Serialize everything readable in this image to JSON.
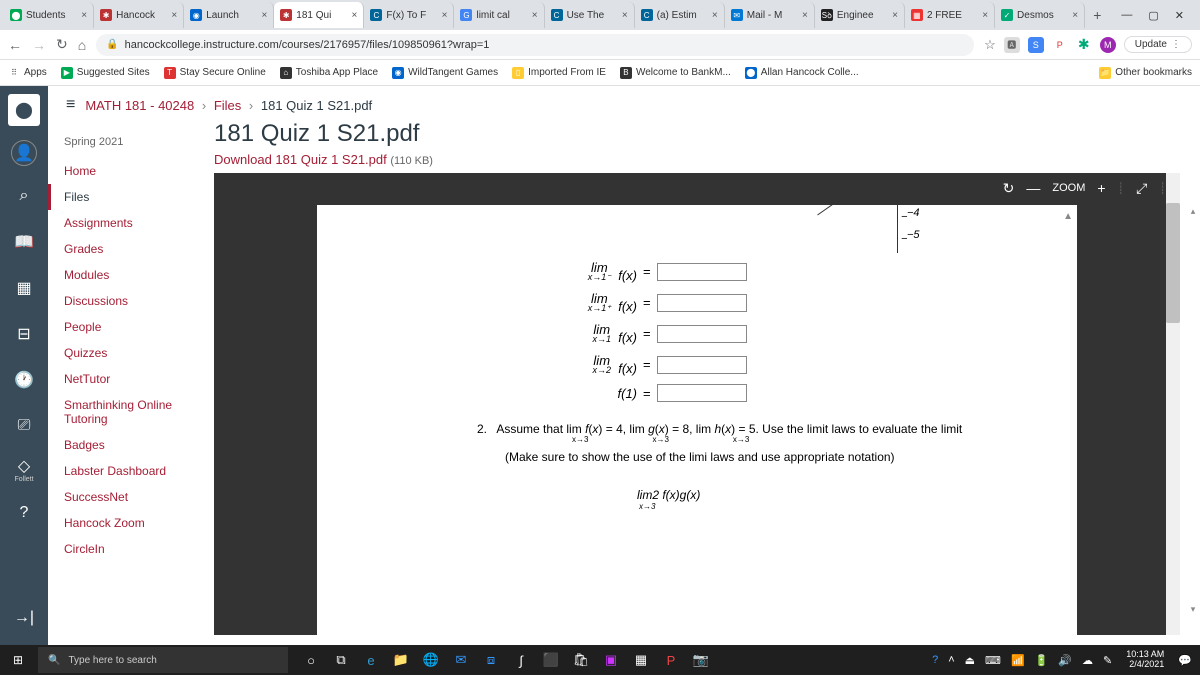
{
  "tabs": [
    {
      "label": "Students",
      "fav_bg": "#0a5",
      "fav_txt": "⬤"
    },
    {
      "label": "Hancock",
      "fav_bg": "#b33",
      "fav_txt": "✱"
    },
    {
      "label": "Launch",
      "fav_bg": "#06c",
      "fav_txt": "◉"
    },
    {
      "label": "181 Qui",
      "fav_bg": "#b33",
      "fav_txt": "✱",
      "active": true
    },
    {
      "label": "F(x) To F",
      "fav_bg": "#069",
      "fav_txt": "C"
    },
    {
      "label": "limit cal",
      "fav_bg": "#4285f4",
      "fav_txt": "G"
    },
    {
      "label": "Use The",
      "fav_bg": "#069",
      "fav_txt": "C"
    },
    {
      "label": "(a) Estim",
      "fav_bg": "#069",
      "fav_txt": "C"
    },
    {
      "label": "Mail - M",
      "fav_bg": "#0078d4",
      "fav_txt": "✉"
    },
    {
      "label": "Enginee",
      "fav_bg": "#222",
      "fav_txt": "Sꝺ"
    },
    {
      "label": "2 FREE",
      "fav_bg": "#e33",
      "fav_txt": "▦"
    },
    {
      "label": "Desmos",
      "fav_bg": "#0a7",
      "fav_txt": "✓"
    }
  ],
  "url": "hancockcollege.instructure.com/courses/2176957/files/109850961?wrap=1",
  "update_label": "Update",
  "bookmarks": [
    {
      "label": "Apps",
      "icon": "⠿",
      "bg": ""
    },
    {
      "label": "Suggested Sites",
      "icon": "▶",
      "bg": "#0a5"
    },
    {
      "label": "Stay Secure Online",
      "icon": "T",
      "bg": "#d33"
    },
    {
      "label": "Toshiba App Place",
      "icon": "⌂",
      "bg": "#333"
    },
    {
      "label": "WildTangent Games",
      "icon": "◉",
      "bg": "#06c"
    },
    {
      "label": "Imported From IE",
      "icon": "▯",
      "bg": "#fc3"
    },
    {
      "label": "Welcome to BankM...",
      "icon": "B",
      "bg": "#333"
    },
    {
      "label": "Allan Hancock Colle...",
      "icon": "⬤",
      "bg": "#06c"
    }
  ],
  "other_bookmarks": "Other bookmarks",
  "breadcrumb": {
    "course": "MATH 181 - 40248",
    "mid": "Files",
    "current": "181 Quiz 1 S21.pdf"
  },
  "term": "Spring 2021",
  "course_nav": [
    "Home",
    "Files",
    "Assignments",
    "Grades",
    "Modules",
    "Discussions",
    "People",
    "Quizzes",
    "NetTutor",
    "Smarthinking Online Tutoring",
    "Badges",
    "Labster Dashboard",
    "SuccessNet",
    "Hancock Zoom",
    "CircleIn"
  ],
  "course_nav_active": 1,
  "file_title": "181 Quiz 1 S21.pdf",
  "download_text": "Download 181 Quiz 1 S21.pdf",
  "file_size": "(110 KB)",
  "pdf_toolbar": {
    "zoom": "ZOOM"
  },
  "graph_ticks": [
    "−4",
    "−5"
  ],
  "limits": [
    {
      "top": "lim",
      "sub": "x→1⁻",
      "fn": "f(x)"
    },
    {
      "top": "lim",
      "sub": "x→1⁺",
      "fn": "f(x)"
    },
    {
      "top": "lim",
      "sub": "x→1",
      "fn": "f(x)"
    },
    {
      "top": "lim",
      "sub": "x→2",
      "fn": "f(x)"
    },
    {
      "top": "",
      "sub": "",
      "fn": "f(1)"
    }
  ],
  "problem2": {
    "num": "2.",
    "line1": "Assume that lim f(x) = 4, lim g(x) = 8, lim h(x) = 5. Use the limit laws to evaluate the limit",
    "subs": "x→3                    x→3                    x→3",
    "line2": "(Make sure to show the use of the limi laws and use appropriate notation)",
    "expr_top": "lim2 f(x)g(x)",
    "expr_sub": "x→3"
  },
  "search_placeholder": "Type here to search",
  "clock": {
    "time": "10:13 AM",
    "date": "2/4/2021"
  },
  "follett": "Follett"
}
